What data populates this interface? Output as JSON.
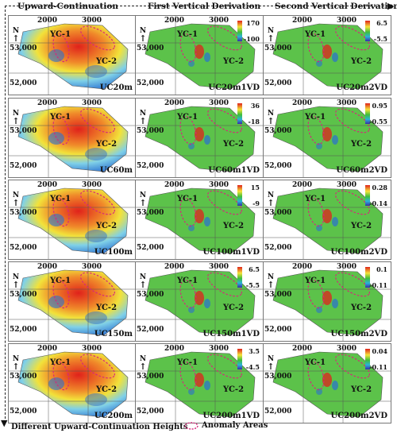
{
  "headers": {
    "col1": "Upward-Continuation",
    "col2": "First Vertical Derivation",
    "col3": "Second Vertical Derivation"
  },
  "common": {
    "north": "N",
    "coord_2000": "2000",
    "coord_3000": "3000",
    "coord_53000": "53,000",
    "coord_52000": "52,000",
    "yc1": "YC-1",
    "yc2": "YC-2"
  },
  "panels": [
    {
      "label": "UC20m"
    },
    {
      "label": "UC20m1VD",
      "cb_max": "170",
      "cb_min": "-100"
    },
    {
      "label": "UC20m2VD",
      "cb_max": "6.5",
      "cb_min": "-5.5"
    },
    {
      "label": "UC60m"
    },
    {
      "label": "UC60m1VD",
      "cb_max": "36",
      "cb_min": "-18"
    },
    {
      "label": "UC60m2VD",
      "cb_max": "0.95",
      "cb_min": "-0.55"
    },
    {
      "label": "UC100m"
    },
    {
      "label": "UC100m1VD",
      "cb_max": "15",
      "cb_min": "-9"
    },
    {
      "label": "UC100m2VD",
      "cb_max": "0.28",
      "cb_min": "-0.14"
    },
    {
      "label": "UC150m"
    },
    {
      "label": "UC150m1VD",
      "cb_max": "6.5",
      "cb_min": "-5.5"
    },
    {
      "label": "UC150m2VD",
      "cb_max": "0.1",
      "cb_min": "-0.11"
    },
    {
      "label": "UC200m"
    },
    {
      "label": "UC200m1VD",
      "cb_max": "3.5",
      "cb_min": "-4.5"
    },
    {
      "label": "UC200m2VD",
      "cb_max": "0.04",
      "cb_min": "-0.11"
    }
  ],
  "footer": {
    "left": "Different Upward-Continuation Heights",
    "legend": "Anomaly Areas"
  },
  "colors": {
    "ellipse": "#d6287a",
    "green": "#5cc24a",
    "red": "#e0221b",
    "yellow": "#f2e23a",
    "blue": "#2a6fd1"
  }
}
